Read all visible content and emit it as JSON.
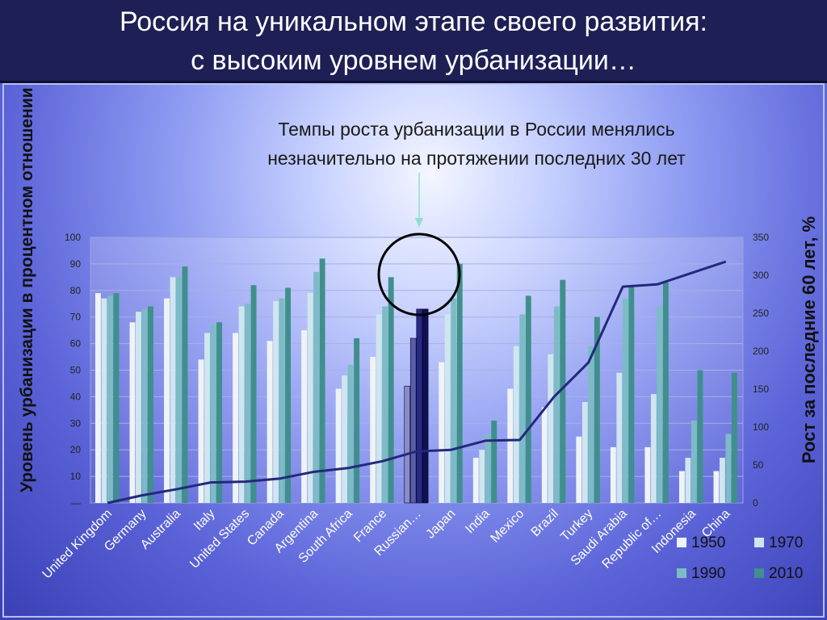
{
  "slide": {
    "title_line1": "Россия на уникальном этапе своего развития:",
    "title_line2": "с высоким уровнем урбанизации…",
    "subtitle_line1": "Темпы роста урбанизации в России менялись",
    "subtitle_line2": "незначительно на протяжении последних 30 лет"
  },
  "colors": {
    "1950": "#eef4f6",
    "1970": "#cfe6ee",
    "1990": "#7cbcc4",
    "2010": "#3f8f8c",
    "russia_highlight": [
      "#8a8cc7",
      "#5a5ea8",
      "#262a84",
      "#0e1150"
    ],
    "growth_line": "#24287a",
    "circle": "#000000"
  },
  "chart_data": {
    "type": "bar",
    "title": "",
    "categories": [
      "United Kingdom",
      "Germany",
      "Australia",
      "Italy",
      "United States",
      "Canada",
      "Argentina",
      "South Africa",
      "France",
      "Russian…",
      "Japan",
      "India",
      "Mexico",
      "Brazil",
      "Turkey",
      "Saudi Arabia",
      "Republic of…",
      "Indonesia",
      "China"
    ],
    "series": [
      {
        "name": "1950",
        "values": [
          79,
          68,
          77,
          54,
          64,
          61,
          65,
          43,
          55,
          44,
          53,
          17,
          43,
          36,
          25,
          21,
          21,
          12,
          12
        ]
      },
      {
        "name": "1970",
        "values": [
          77,
          72,
          85,
          64,
          74,
          76,
          79,
          48,
          71,
          62,
          71,
          20,
          59,
          56,
          38,
          49,
          41,
          17,
          17
        ]
      },
      {
        "name": "1990",
        "values": [
          78,
          73,
          85,
          67,
          75,
          77,
          87,
          52,
          74,
          73,
          77,
          26,
          71,
          74,
          59,
          77,
          74,
          31,
          26
        ]
      },
      {
        "name": "2010",
        "values": [
          79,
          74,
          89,
          68,
          82,
          81,
          92,
          62,
          85,
          73,
          90,
          31,
          78,
          84,
          70,
          82,
          83,
          50,
          49
        ]
      }
    ],
    "growth_series": {
      "name": "Рост за последние 60 лет, %",
      "values": [
        0,
        10,
        18,
        27,
        28,
        32,
        41,
        46,
        55,
        68,
        70,
        82,
        83,
        140,
        185,
        285,
        288,
        303,
        318
      ]
    },
    "ylabel": "Уровень урбанизации в процентном отношении",
    "y2label": "Рост за последние 60 лет, %",
    "ylim": [
      0,
      100
    ],
    "y2lim": [
      0,
      350
    ],
    "yticks": [
      "100",
      "90",
      "80",
      "70",
      "60",
      "50",
      "40",
      "30",
      "20",
      "10",
      "0"
    ],
    "y2ticks": [
      "350",
      "300",
      "250",
      "200",
      "150",
      "100",
      "50",
      "0"
    ],
    "legend": [
      "1950",
      "1970",
      "1990",
      "2010"
    ],
    "legend_position": "bottom-right",
    "highlight_category": "Russian…"
  }
}
